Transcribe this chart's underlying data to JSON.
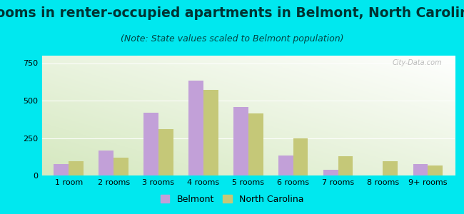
{
  "title": "Rooms in renter-occupied apartments in Belmont, North Carolina",
  "subtitle": "(Note: State values scaled to Belmont population)",
  "categories": [
    "1 room",
    "2 rooms",
    "3 rooms",
    "4 rooms",
    "5 rooms",
    "6 rooms",
    "7 rooms",
    "8 rooms",
    "9+ rooms"
  ],
  "belmont": [
    75,
    165,
    420,
    635,
    455,
    135,
    38,
    0,
    75
  ],
  "nc": [
    95,
    120,
    310,
    570,
    415,
    248,
    128,
    95,
    65
  ],
  "belmont_color": "#c2a0d8",
  "nc_color": "#c5c878",
  "background_fig": "#00e8ef",
  "ylim": [
    0,
    800
  ],
  "yticks": [
    0,
    250,
    500,
    750
  ],
  "bar_width": 0.33,
  "title_fontsize": 13.5,
  "subtitle_fontsize": 9,
  "tick_fontsize": 8,
  "legend_fontsize": 9
}
